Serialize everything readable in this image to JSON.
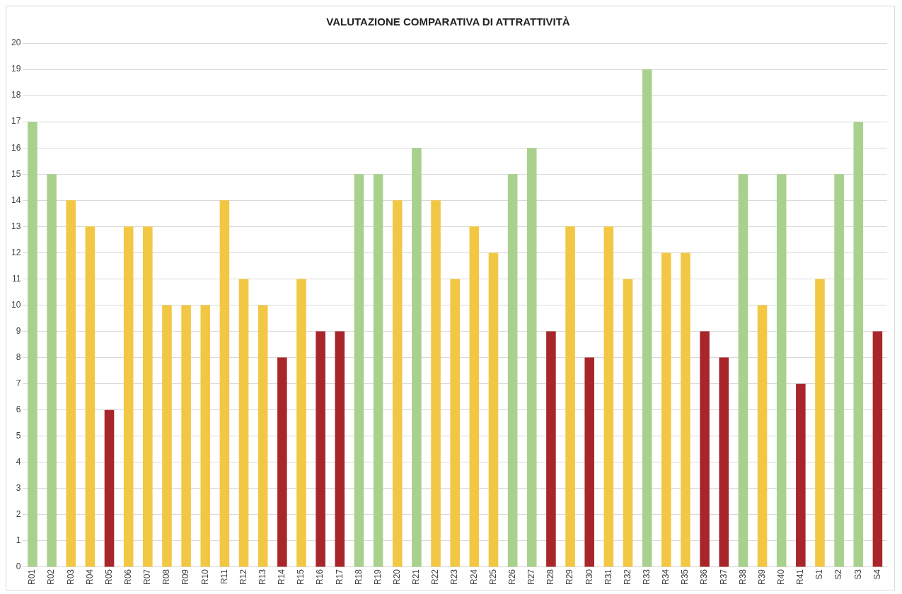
{
  "chart_data": {
    "type": "bar",
    "title": "VALUTAZIONE COMPARATIVA DI ATTRATTIVITÀ",
    "categories": [
      "R01",
      "R02",
      "R03",
      "R04",
      "R05",
      "R06",
      "R07",
      "R08",
      "R09",
      "R10",
      "R11",
      "R12",
      "R13",
      "R14",
      "R15",
      "R16",
      "R17",
      "R18",
      "R19",
      "R20",
      "R21",
      "R22",
      "R23",
      "R24",
      "R25",
      "R26",
      "R27",
      "R28",
      "R29",
      "R30",
      "R31",
      "R32",
      "R33",
      "R34",
      "R35",
      "R36",
      "R37",
      "R38",
      "R39",
      "R40",
      "R41",
      "S1",
      "S2",
      "S3",
      "S4"
    ],
    "values": [
      17,
      15,
      14,
      13,
      6,
      13,
      13,
      10,
      10,
      10,
      14,
      11,
      10,
      8,
      11,
      9,
      9,
      15,
      15,
      14,
      16,
      14,
      11,
      13,
      12,
      15,
      16,
      9,
      13,
      8,
      13,
      11,
      19,
      12,
      12,
      9,
      8,
      15,
      10,
      15,
      7,
      11,
      15,
      17,
      9
    ],
    "colors": [
      "#a9d18e",
      "#a9d18e",
      "#f2c744",
      "#f2c744",
      "#a8262b",
      "#f2c744",
      "#f2c744",
      "#f2c744",
      "#f2c744",
      "#f2c744",
      "#f2c744",
      "#f2c744",
      "#f2c744",
      "#a8262b",
      "#f2c744",
      "#a8262b",
      "#a8262b",
      "#a9d18e",
      "#a9d18e",
      "#f2c744",
      "#a9d18e",
      "#f2c744",
      "#f2c744",
      "#f2c744",
      "#f2c744",
      "#a9d18e",
      "#a9d18e",
      "#a8262b",
      "#f2c744",
      "#a8262b",
      "#f2c744",
      "#f2c744",
      "#a9d18e",
      "#f2c744",
      "#f2c744",
      "#a8262b",
      "#a8262b",
      "#a9d18e",
      "#f2c744",
      "#a9d18e",
      "#a8262b",
      "#f2c744",
      "#a9d18e",
      "#a9d18e",
      "#a8262b"
    ],
    "ylim": [
      0,
      20
    ],
    "yticks": [
      0,
      1,
      2,
      3,
      4,
      5,
      6,
      7,
      8,
      9,
      10,
      11,
      12,
      13,
      14,
      15,
      16,
      17,
      18,
      19,
      20
    ],
    "grid": "y",
    "legend": false
  }
}
